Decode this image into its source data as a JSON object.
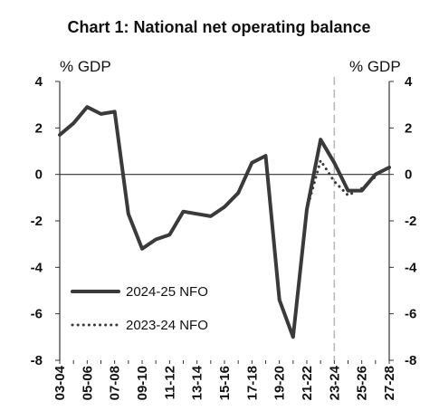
{
  "chart_data": {
    "type": "line",
    "title": "Chart 1: National net operating balance",
    "ylabel_left": "% GDP",
    "ylabel_right": "% GDP",
    "ylim": [
      -8,
      4
    ],
    "y_ticks": [
      4,
      2,
      0,
      -2,
      -4,
      -6,
      -8
    ],
    "x_categories": [
      "03-04",
      "04-05",
      "05-06",
      "06-07",
      "07-08",
      "08-09",
      "09-10",
      "10-11",
      "11-12",
      "12-13",
      "13-14",
      "14-15",
      "15-16",
      "16-17",
      "17-18",
      "18-19",
      "19-20",
      "20-21",
      "21-22",
      "22-23",
      "23-24",
      "24-25",
      "25-26",
      "26-27",
      "27-28"
    ],
    "x_tick_labels": [
      "03-04",
      "05-06",
      "07-08",
      "09-10",
      "11-12",
      "13-14",
      "15-16",
      "17-18",
      "19-20",
      "21-22",
      "23-24",
      "25-26",
      "27-28"
    ],
    "forecast_divider_at": "23-24",
    "grid": false,
    "legend_position": "bottom-left",
    "series": [
      {
        "name": "2024-25 NFO",
        "style": "solid",
        "color": "#3a3a3a",
        "x": [
          "03-04",
          "04-05",
          "05-06",
          "06-07",
          "07-08",
          "08-09",
          "09-10",
          "10-11",
          "11-12",
          "12-13",
          "13-14",
          "14-15",
          "15-16",
          "16-17",
          "17-18",
          "18-19",
          "19-20",
          "20-21",
          "21-22",
          "22-23",
          "23-24",
          "24-25",
          "25-26",
          "26-27",
          "27-28"
        ],
        "values": [
          1.7,
          2.2,
          2.9,
          2.6,
          2.7,
          -1.7,
          -3.2,
          -2.8,
          -2.6,
          -1.6,
          -1.7,
          -1.8,
          -1.4,
          -0.8,
          0.5,
          0.8,
          -5.4,
          -7.0,
          -1.5,
          1.5,
          0.5,
          -0.7,
          -0.7,
          0.0,
          0.3
        ]
      },
      {
        "name": "2023-24 NFO",
        "style": "dotted",
        "color": "#3a3a3a",
        "x": [
          "21-22",
          "22-23",
          "23-24",
          "24-25",
          "25-26",
          "26-27"
        ],
        "values": [
          -1.5,
          0.6,
          -0.3,
          -0.9,
          -0.6,
          -0.1
        ]
      }
    ]
  }
}
